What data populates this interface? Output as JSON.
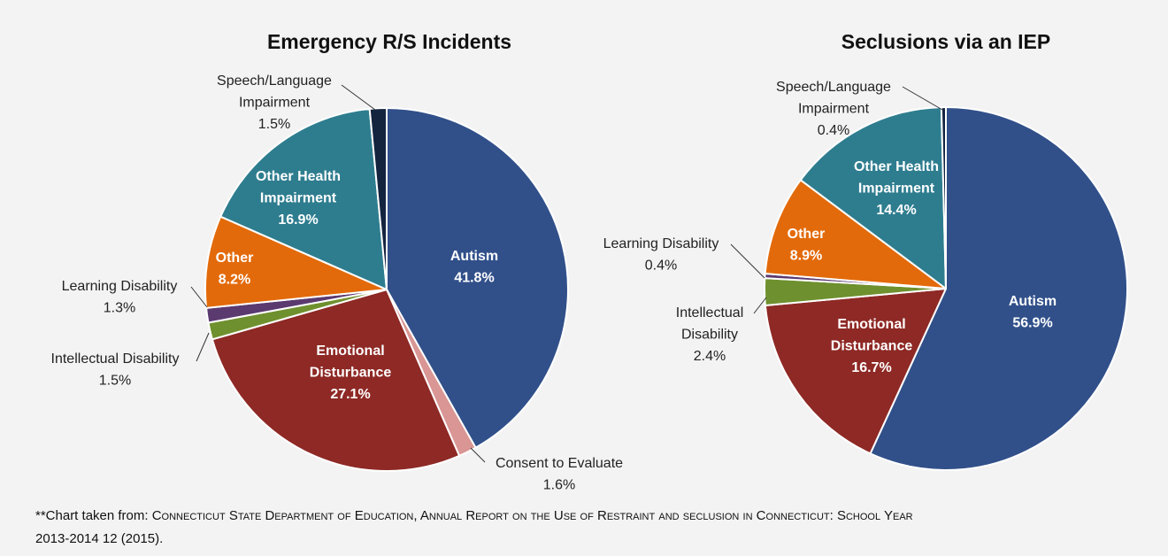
{
  "chart_data": [
    {
      "type": "pie",
      "title": "Emergency R/S Incidents",
      "slices": [
        {
          "name": "Autism",
          "value": 41.8,
          "label": "41.8%",
          "color": "#31508a"
        },
        {
          "name": "Consent to Evaluate",
          "value": 1.6,
          "label": "1.6%",
          "color": "#d99694"
        },
        {
          "name": "Emotional Disturbance",
          "value": 27.1,
          "label": "27.1%",
          "color": "#8e2925"
        },
        {
          "name": "Intellectual Disability",
          "value": 1.5,
          "label": "1.5%",
          "color": "#6f902e"
        },
        {
          "name": "Learning Disability",
          "value": 1.3,
          "label": "1.3%",
          "color": "#5b3a70"
        },
        {
          "name": "Other",
          "value": 8.2,
          "label": "8.2%",
          "color": "#e36a0a"
        },
        {
          "name": "Other Health Impairment",
          "value": 16.9,
          "label": "16.9%",
          "color": "#2e7d8f"
        },
        {
          "name": "Speech/Language Impairment",
          "value": 1.5,
          "label": "1.5%",
          "color": "#14243f"
        }
      ]
    },
    {
      "type": "pie",
      "title": "Seclusions via an IEP",
      "slices": [
        {
          "name": "Autism",
          "value": 56.9,
          "label": "56.9%",
          "color": "#31508a"
        },
        {
          "name": "Emotional Disturbance",
          "value": 16.7,
          "label": "16.7%",
          "color": "#8e2925"
        },
        {
          "name": "Intellectual Disability",
          "value": 2.4,
          "label": "2.4%",
          "color": "#6f902e"
        },
        {
          "name": "Learning Disability",
          "value": 0.4,
          "label": "0.4%",
          "color": "#5b3a70"
        },
        {
          "name": "Other",
          "value": 8.9,
          "label": "8.9%",
          "color": "#e36a0a"
        },
        {
          "name": "Other Health Impairment",
          "value": 14.4,
          "label": "14.4%",
          "color": "#2e7d8f"
        },
        {
          "name": "Speech/Language Impairment",
          "value": 0.4,
          "label": "0.4%",
          "color": "#14243f"
        }
      ]
    }
  ],
  "footnote": {
    "prefix": "**Chart taken from: ",
    "source": "Connecticut State Department of Education, Annual Report on the Use of Restraint and seclusion in Connecticut: School Year",
    "line2": "2013-2014 12 (2015)."
  }
}
